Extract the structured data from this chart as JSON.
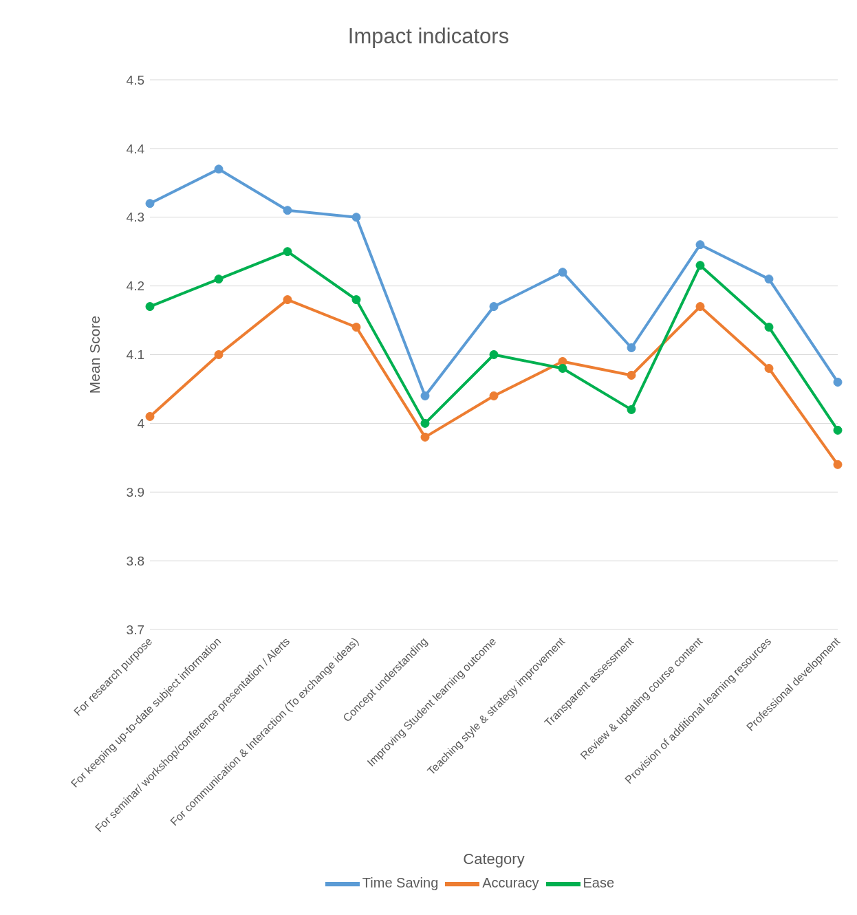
{
  "chart_data": {
    "type": "line",
    "title": "Impact indicators",
    "xlabel": "Category",
    "ylabel": "Mean Score",
    "categories": [
      "For research purpose",
      "For keeping up-to-date subject information",
      "For seminar/ workshop/conference presentation / Alerts",
      "For communication & Interaction (To exchange ideas)",
      "Concept understanding",
      "Improving Student learning outcome",
      "Teaching style & strategy improvement",
      "Transparent assessment",
      "Review & updating course content",
      "Provision of additional learning resources",
      "Professional development"
    ],
    "series": [
      {
        "name": "Time Saving",
        "color": "#5b9bd5",
        "values": [
          4.32,
          4.37,
          4.31,
          4.3,
          4.04,
          4.17,
          4.22,
          4.11,
          4.26,
          4.21,
          4.06
        ]
      },
      {
        "name": "Accuracy",
        "color": "#ed7d31",
        "values": [
          4.01,
          4.1,
          4.18,
          4.14,
          3.98,
          4.04,
          4.09,
          4.07,
          4.17,
          4.08,
          3.94
        ]
      },
      {
        "name": "Ease",
        "color": "#00b050",
        "values": [
          4.17,
          4.21,
          4.25,
          4.18,
          4.0,
          4.1,
          4.08,
          4.02,
          4.23,
          4.14,
          3.99
        ]
      }
    ],
    "ylim": [
      3.7,
      4.5
    ],
    "yticks": [
      3.7,
      3.8,
      3.9,
      4,
      4.1,
      4.2,
      4.3,
      4.4,
      4.5
    ],
    "grid": "y",
    "legend": "bottom",
    "marker": "circle",
    "line_style": "solid"
  }
}
